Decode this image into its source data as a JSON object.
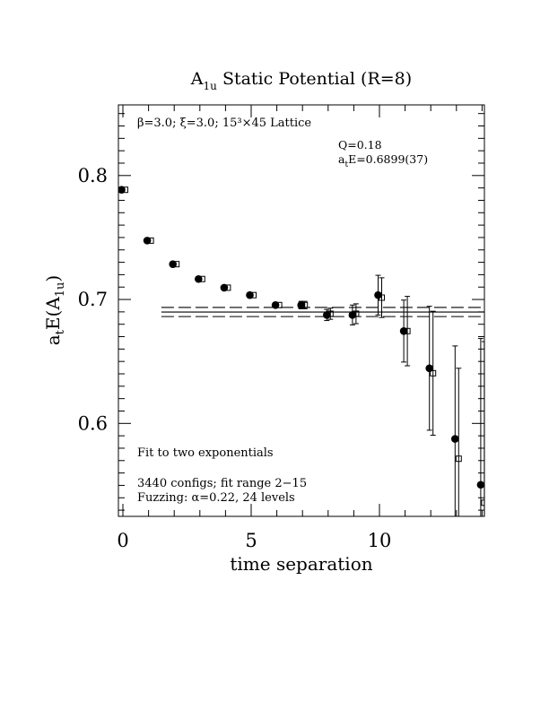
{
  "chart_data": {
    "type": "scatter",
    "title": {
      "main": "A",
      "sub": "1u",
      "rest": " Static Potential (R=8)"
    },
    "xlabel": "time separation",
    "ylabel": {
      "pre": "a",
      "pre_sub": "t",
      "mid": "E(A",
      "mid_sub": "1u",
      "post": ")"
    },
    "xlim": [
      0,
      14
    ],
    "ylim": [
      0.525,
      0.857
    ],
    "x_ticks": [
      0,
      5,
      10
    ],
    "y_ticks": [
      0.6,
      0.7,
      0.8
    ],
    "x_tick_labels": [
      "0",
      "5",
      "10"
    ],
    "y_tick_labels": [
      "0.6",
      "0.7",
      "0.8"
    ],
    "lattice_text": "β=3.0; ξ=3.0; 15³×45 Lattice",
    "fit_info": {
      "q": "Q=0.18",
      "energy_pre": "a",
      "energy_sub": "t",
      "energy_rest": "E=0.6899(37)"
    },
    "notes": {
      "fit": "Fit to two exponentials",
      "configs": "3440 configs; fit range 2−15",
      "fuzzing": "Fuzzing: α=0.22, 24 levels"
    },
    "fit": {
      "value": 0.6899,
      "error": 0.0037,
      "x_range": [
        1.5,
        14
      ]
    },
    "series": [
      {
        "marker": "filled-circle",
        "points": [
          {
            "x": 0,
            "y": 0.7885,
            "err": 0.001
          },
          {
            "x": 1,
            "y": 0.7475,
            "err": 0.001
          },
          {
            "x": 2,
            "y": 0.7285,
            "err": 0.0012
          },
          {
            "x": 3,
            "y": 0.7165,
            "err": 0.0012
          },
          {
            "x": 4,
            "y": 0.7095,
            "err": 0.0015
          },
          {
            "x": 5,
            "y": 0.7035,
            "err": 0.0015
          },
          {
            "x": 6,
            "y": 0.6955,
            "err": 0.0018
          },
          {
            "x": 7,
            "y": 0.6955,
            "err": 0.003
          },
          {
            "x": 8,
            "y": 0.6875,
            "err": 0.0045
          },
          {
            "x": 9,
            "y": 0.6875,
            "err": 0.008
          },
          {
            "x": 10,
            "y": 0.7035,
            "err": 0.016
          },
          {
            "x": 11,
            "y": 0.6745,
            "err": 0.025
          },
          {
            "x": 12,
            "y": 0.6445,
            "err": 0.05
          },
          {
            "x": 13,
            "y": 0.5875,
            "err": 0.075
          },
          {
            "x": 14,
            "y": 0.5505,
            "err": 0.118
          }
        ]
      },
      {
        "marker": "open-square",
        "points": [
          {
            "x": 0,
            "y": 0.7885,
            "err": 0.001
          },
          {
            "x": 1,
            "y": 0.7475,
            "err": 0.001
          },
          {
            "x": 2,
            "y": 0.7285,
            "err": 0.0012
          },
          {
            "x": 3,
            "y": 0.7165,
            "err": 0.0012
          },
          {
            "x": 4,
            "y": 0.7095,
            "err": 0.0015
          },
          {
            "x": 5,
            "y": 0.7035,
            "err": 0.0015
          },
          {
            "x": 6,
            "y": 0.6955,
            "err": 0.0018
          },
          {
            "x": 7,
            "y": 0.6955,
            "err": 0.003
          },
          {
            "x": 8,
            "y": 0.6885,
            "err": 0.0045
          },
          {
            "x": 9,
            "y": 0.6885,
            "err": 0.008
          },
          {
            "x": 10,
            "y": 0.7015,
            "err": 0.016
          },
          {
            "x": 11,
            "y": 0.6745,
            "err": 0.028
          },
          {
            "x": 12,
            "y": 0.6405,
            "err": 0.05
          },
          {
            "x": 13,
            "y": 0.5715,
            "err": 0.073
          },
          {
            "x": 14,
            "y": 0.536,
            "err": 0.13
          }
        ]
      }
    ]
  }
}
